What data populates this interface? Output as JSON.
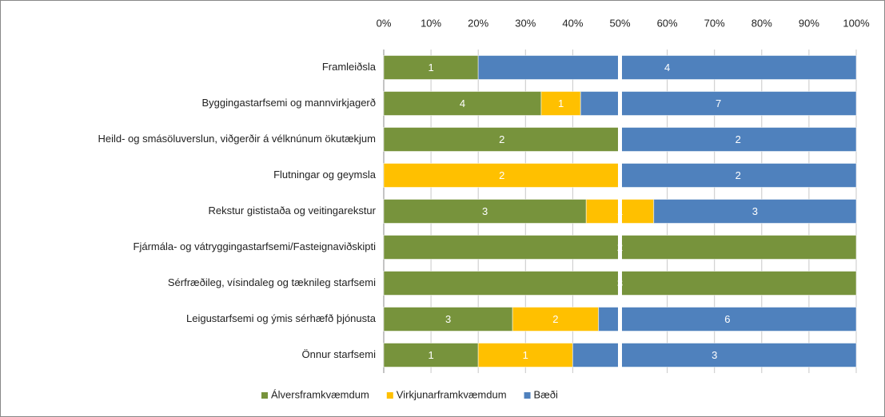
{
  "chart_data": {
    "type": "bar",
    "orientation": "horizontal",
    "stacking": "percent",
    "categories": [
      "Framleiðsla",
      "Byggingastarfsemi og mannvirkjagerð",
      "Heild- og smásöluverslun, viðgerðir á vélknúnum ökutækjum",
      "Flutningar og geymsla",
      "Rekstur gististaða og veitingarekstur",
      "Fjármála- og vátryggingastarfsemi/Fasteignaviðskipti",
      "Sérfræðileg, vísindaleg og tæknileg starfsemi",
      "Leigustarfsemi og ýmis sérhæfð þjónusta",
      "Önnur starfsemi"
    ],
    "series": [
      {
        "name": "Álversframkvæmdum",
        "color": "#77933c",
        "values": [
          1,
          4,
          2,
          null,
          3,
          2,
          3,
          3,
          1
        ]
      },
      {
        "name": "Virkjunarframkvæmdum",
        "color": "#ffc000",
        "values": [
          null,
          1,
          null,
          2,
          1,
          null,
          null,
          2,
          1
        ]
      },
      {
        "name": "Bæði",
        "color": "#4f81bd",
        "values": [
          4,
          7,
          2,
          2,
          3,
          null,
          null,
          6,
          3
        ]
      }
    ],
    "xlim": [
      0,
      100
    ],
    "xticks": [
      {
        "value": 0,
        "label": "0%"
      },
      {
        "value": 10,
        "label": "10%"
      },
      {
        "value": 20,
        "label": "20%"
      },
      {
        "value": 30,
        "label": "30%"
      },
      {
        "value": 40,
        "label": "40%"
      },
      {
        "value": 50,
        "label": "50%"
      },
      {
        "value": 60,
        "label": "60%"
      },
      {
        "value": 70,
        "label": "70%"
      },
      {
        "value": 80,
        "label": "80%"
      },
      {
        "value": 90,
        "label": "90%"
      },
      {
        "value": 100,
        "label": "100%"
      }
    ],
    "grid": true,
    "legend": "bottom"
  }
}
